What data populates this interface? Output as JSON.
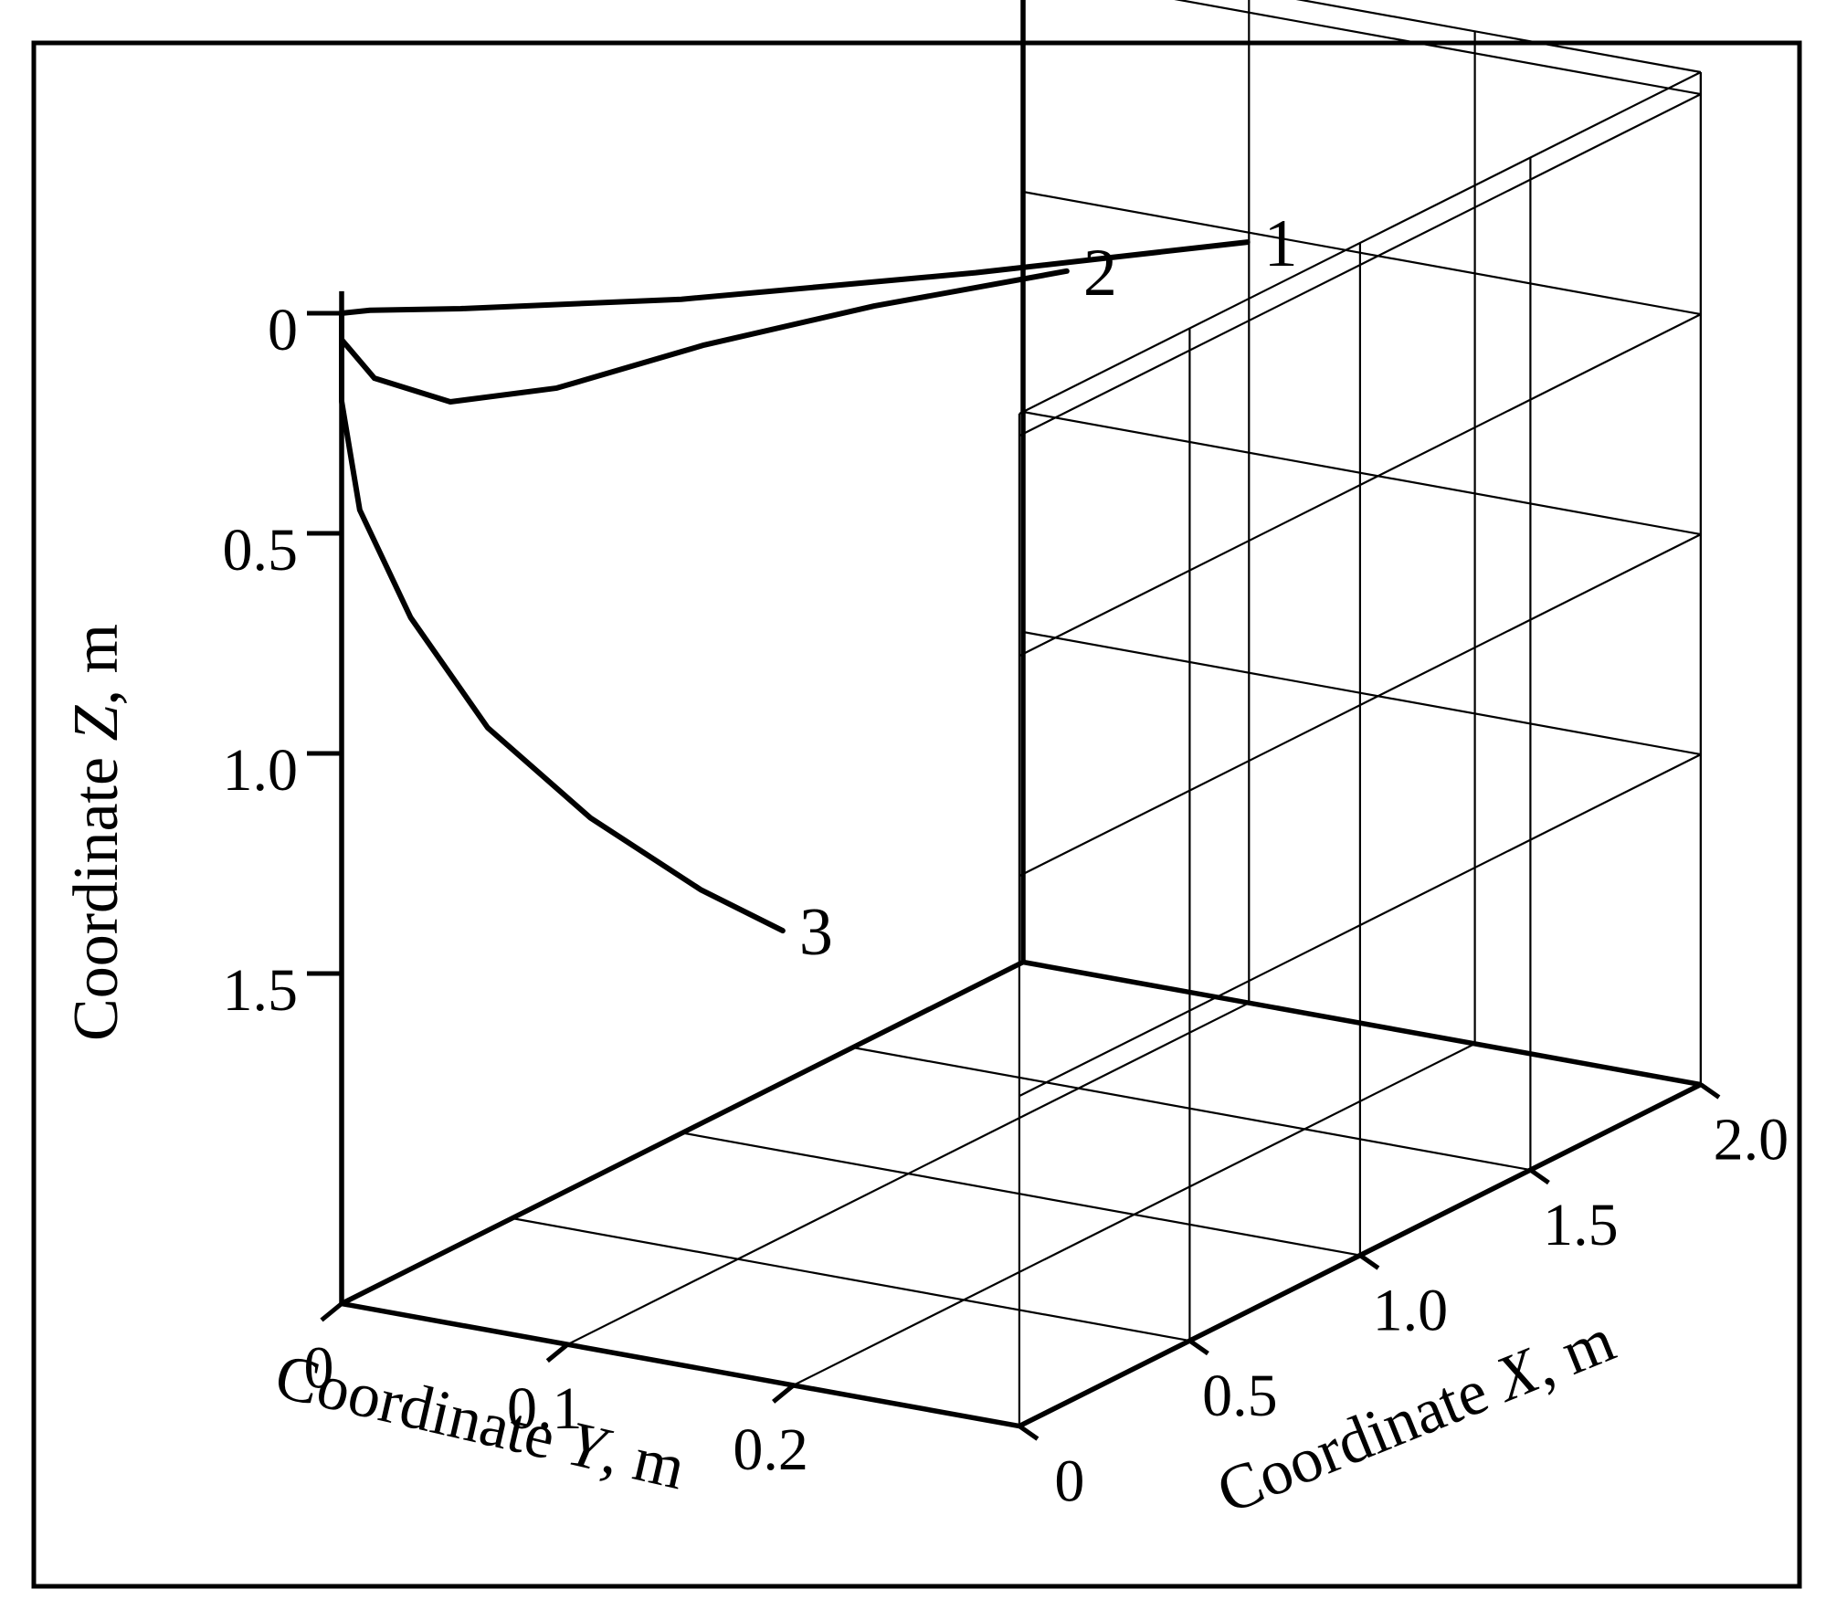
{
  "chart_data": {
    "type": "line",
    "projection": "3d",
    "axes": {
      "x": {
        "label_prefix": "Coordinate ",
        "label_var": "X",
        "label_unit": ", m",
        "ticks": [
          "0",
          "0.5",
          "1.0",
          "1.5",
          "2.0"
        ],
        "range": [
          0,
          2.0
        ]
      },
      "y": {
        "label_prefix": "Coordinate ",
        "label_var": "Y",
        "label_unit": ", m",
        "ticks": [
          "0",
          "0.1",
          "0.2"
        ],
        "range": [
          0,
          0.3
        ]
      },
      "z": {
        "label_prefix": "Coordinate ",
        "label_var": "Z",
        "label_unit": ", m",
        "ticks": [
          "0",
          "0.5",
          "1.0",
          "1.5"
        ],
        "range": [
          0,
          2.0
        ],
        "inverted": true
      }
    },
    "grid": true,
    "series": [
      {
        "name": "1",
        "points": [
          [
            0,
            0,
            0
          ],
          [
            0.05,
            0.005,
            0.008
          ],
          [
            0.15,
            0.03,
            0.02
          ],
          [
            0.4,
            0.09,
            0.04
          ],
          [
            0.8,
            0.16,
            0.07
          ],
          [
            1.2,
            0.22,
            0.1
          ]
        ]
      },
      {
        "name": "2",
        "points": [
          [
            0,
            0,
            0
          ],
          [
            0,
            0,
            0.06
          ],
          [
            0.03,
            0.01,
            0.15
          ],
          [
            0.12,
            0.03,
            0.22
          ],
          [
            0.3,
            0.05,
            0.24
          ],
          [
            0.6,
            0.07,
            0.24
          ],
          [
            0.9,
            0.1,
            0.24
          ],
          [
            1.2,
            0.14,
            0.24
          ]
        ]
      },
      {
        "name": "3",
        "points": [
          [
            0,
            0,
            0
          ],
          [
            0,
            0,
            0.2
          ],
          [
            0.02,
            0.005,
            0.45
          ],
          [
            0.07,
            0.02,
            0.7
          ],
          [
            0.13,
            0.045,
            0.95
          ],
          [
            0.2,
            0.08,
            1.15
          ],
          [
            0.26,
            0.12,
            1.3
          ],
          [
            0.3,
            0.15,
            1.38
          ]
        ]
      }
    ]
  }
}
